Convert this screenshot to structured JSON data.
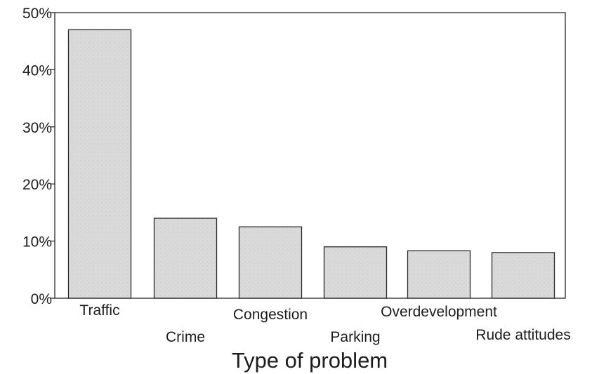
{
  "chart_data": {
    "type": "bar",
    "title": "",
    "xlabel": "Type of problem",
    "ylabel": "",
    "categories": [
      "Traffic",
      "Crime",
      "Congestion",
      "Parking",
      "Overdevelopment",
      "Rude attitudes"
    ],
    "values": [
      47,
      14,
      12.5,
      9,
      8.3,
      8
    ],
    "unit": "%",
    "ylim": [
      0,
      50
    ],
    "yticks": [
      0,
      10,
      20,
      30,
      40,
      50
    ],
    "ytick_labels": [
      "0%",
      "10%",
      "20%",
      "30%",
      "40%",
      "50%"
    ],
    "grid": false,
    "legend": "none",
    "colors": {
      "bar_fill": "#d9d9d9",
      "bar_stroke": "#2a2a2a",
      "frame": "#2a2a2a",
      "text": "#1c1c1c"
    }
  }
}
